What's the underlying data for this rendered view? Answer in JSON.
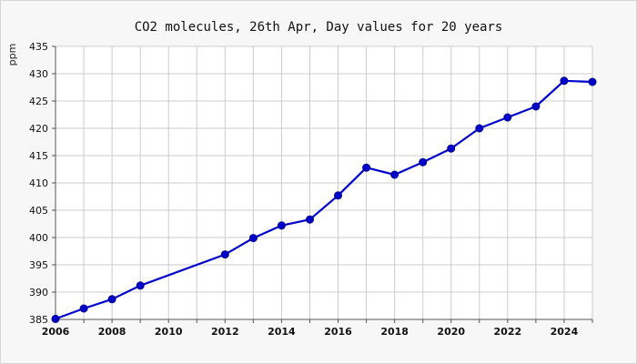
{
  "chart_data": {
    "type": "line",
    "title": "CO2 molecules, 26th Apr, Day values for 20 years",
    "xlabel": "",
    "ylabel": "ppm",
    "xlim": [
      2006,
      2025
    ],
    "ylim": [
      385,
      435
    ],
    "x_ticks": [
      2006,
      2008,
      2010,
      2012,
      2014,
      2016,
      2018,
      2020,
      2022,
      2024
    ],
    "y_ticks": [
      385,
      390,
      395,
      400,
      405,
      410,
      415,
      420,
      425,
      430,
      435
    ],
    "grid": true,
    "legend": "none",
    "series": [
      {
        "color": "#0000cc",
        "points": [
          {
            "x": 2006,
            "y": 385.1
          },
          {
            "x": 2007,
            "y": 387.0
          },
          {
            "x": 2008,
            "y": 388.7
          },
          {
            "x": 2009,
            "y": 391.2
          },
          {
            "x": 2012,
            "y": 396.9
          },
          {
            "x": 2013,
            "y": 399.9
          },
          {
            "x": 2014,
            "y": 402.2
          },
          {
            "x": 2015,
            "y": 403.3
          },
          {
            "x": 2016,
            "y": 407.7
          },
          {
            "x": 2017,
            "y": 412.8
          },
          {
            "x": 2018,
            "y": 411.5
          },
          {
            "x": 2019,
            "y": 413.8
          },
          {
            "x": 2020,
            "y": 416.3
          },
          {
            "x": 2021,
            "y": 420.0
          },
          {
            "x": 2022,
            "y": 422.0
          },
          {
            "x": 2023,
            "y": 424.0
          },
          {
            "x": 2024,
            "y": 428.7
          },
          {
            "x": 2025,
            "y": 428.5
          }
        ]
      }
    ]
  }
}
